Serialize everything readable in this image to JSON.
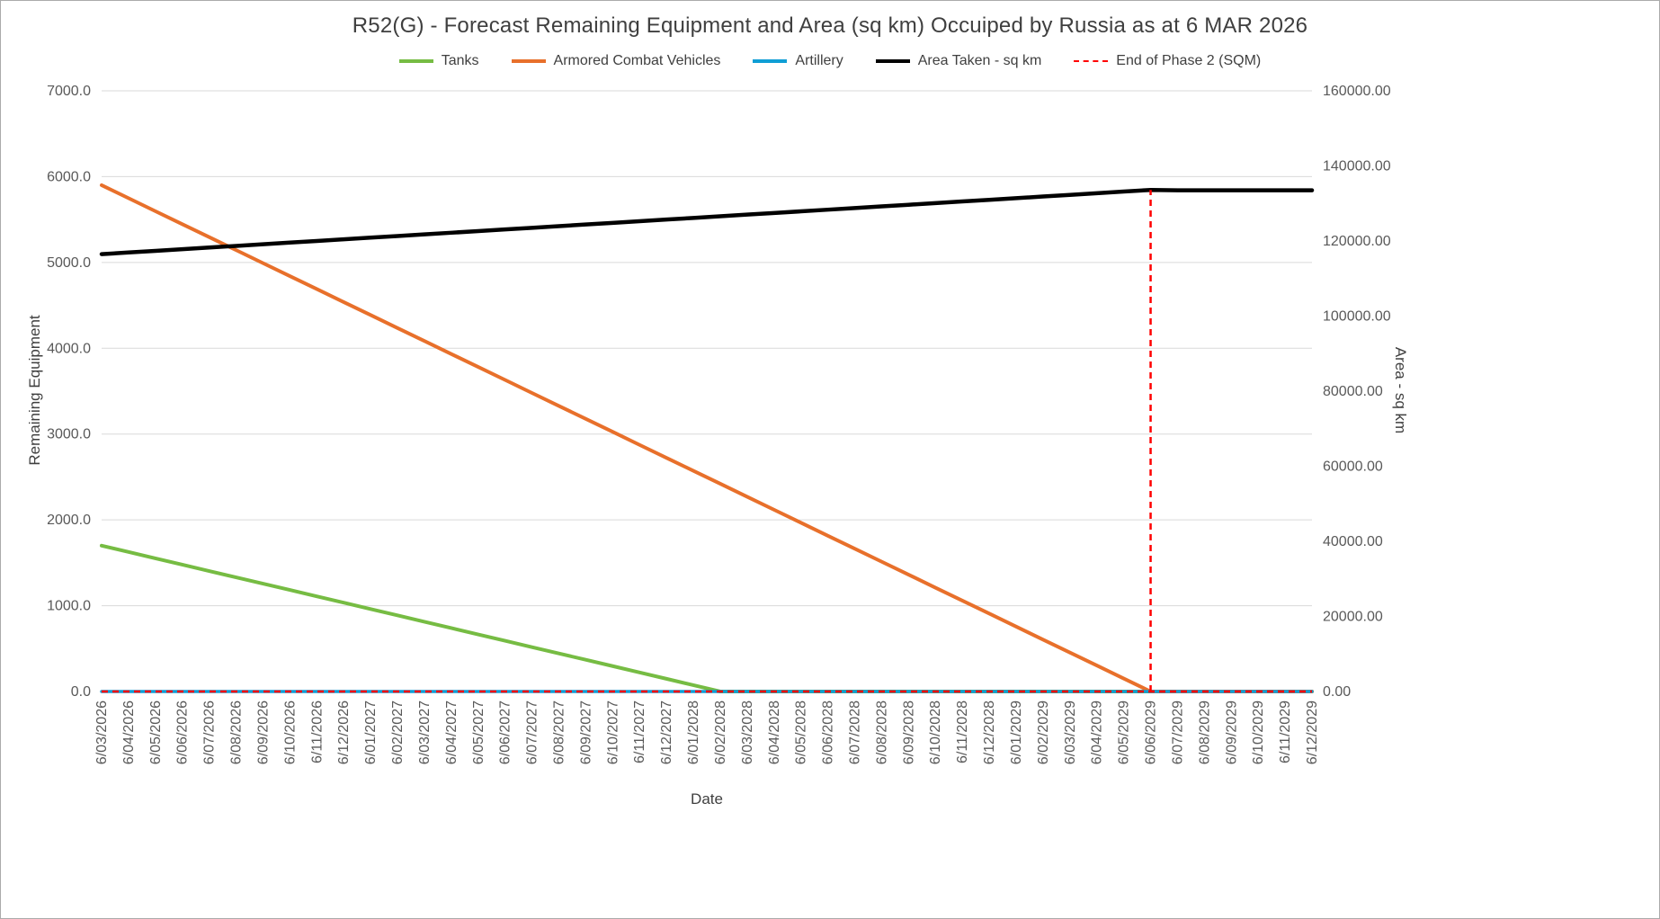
{
  "chart_data": {
    "type": "line",
    "title": "R52(G) - Forecast Remaining Equipment and Area (sq km) Occuiped by Russia as at 6 MAR 2026",
    "xlabel": "Date",
    "ylabel_left": "Remaining Equipment",
    "ylabel_right": "Area - sq km",
    "grid": "horizontal",
    "legend_position": "top",
    "colors": {
      "gridline": "#d9d9d9",
      "axis_line": "#bfbfbf",
      "tick_text": "#595959"
    },
    "left_axis": {
      "min": 0,
      "max": 7000,
      "step": 1000,
      "tick_format": "one_decimal"
    },
    "right_axis": {
      "min": 0,
      "max": 160000,
      "step": 20000,
      "tick_format": "two_decimal"
    },
    "x": [
      "6/03/2026",
      "6/04/2026",
      "6/05/2026",
      "6/06/2026",
      "6/07/2026",
      "6/08/2026",
      "6/09/2026",
      "6/10/2026",
      "6/11/2026",
      "6/12/2026",
      "6/01/2027",
      "6/02/2027",
      "6/03/2027",
      "6/04/2027",
      "6/05/2027",
      "6/06/2027",
      "6/07/2027",
      "6/08/2027",
      "6/09/2027",
      "6/10/2027",
      "6/11/2027",
      "6/12/2027",
      "6/01/2028",
      "6/02/2028",
      "6/03/2028",
      "6/04/2028",
      "6/05/2028",
      "6/06/2028",
      "6/07/2028",
      "6/08/2028",
      "6/09/2028",
      "6/10/2028",
      "6/11/2028",
      "6/12/2028",
      "6/01/2029",
      "6/02/2029",
      "6/03/2029",
      "6/04/2029",
      "6/05/2029",
      "6/06/2029",
      "6/07/2029",
      "6/08/2029",
      "6/09/2029",
      "6/10/2029",
      "6/11/2029",
      "6/12/2029"
    ],
    "series": [
      {
        "name": "Tanks",
        "axis": "left",
        "color": "#76bc43",
        "width": 4,
        "dash": null,
        "values": [
          1700,
          1626,
          1552,
          1478,
          1404,
          1330,
          1257,
          1183,
          1109,
          1035,
          961,
          887,
          813,
          739,
          665,
          591,
          517,
          443,
          370,
          296,
          222,
          148,
          74,
          0,
          0,
          0,
          0,
          0,
          0,
          0,
          0,
          0,
          0,
          0,
          0,
          0,
          0,
          0,
          0,
          0,
          0,
          0,
          0,
          0,
          0,
          0
        ]
      },
      {
        "name": "Armored Combat Vehicles",
        "axis": "left",
        "color": "#e8702b",
        "width": 4,
        "dash": null,
        "values": [
          5900,
          5749,
          5597,
          5446,
          5295,
          5144,
          4992,
          4841,
          4690,
          4538,
          4387,
          4236,
          4085,
          3933,
          3782,
          3631,
          3479,
          3328,
          3177,
          3026,
          2874,
          2723,
          2572,
          2421,
          2269,
          2118,
          1967,
          1815,
          1664,
          1513,
          1362,
          1210,
          1059,
          908,
          756,
          605,
          454,
          303,
          151,
          0,
          0,
          0,
          0,
          0,
          0,
          0
        ]
      },
      {
        "name": "Artillery",
        "axis": "left",
        "color": "#0f9ed5",
        "width": 3.5,
        "dash": null,
        "values": [
          0,
          0,
          0,
          0,
          0,
          0,
          0,
          0,
          0,
          0,
          0,
          0,
          0,
          0,
          0,
          0,
          0,
          0,
          0,
          0,
          0,
          0,
          0,
          0,
          0,
          0,
          0,
          0,
          0,
          0,
          0,
          0,
          0,
          0,
          0,
          0,
          0,
          0,
          0,
          0,
          0,
          0,
          0,
          0,
          0,
          0
        ]
      },
      {
        "name": "Area Taken - sq km",
        "axis": "right",
        "color": "#000000",
        "width": 4.5,
        "dash": null,
        "values": [
          116500,
          116938,
          117377,
          117815,
          118254,
          118692,
          119131,
          119569,
          120008,
          120446,
          120885,
          121323,
          121762,
          122200,
          122638,
          123077,
          123515,
          123954,
          124392,
          124831,
          125269,
          125708,
          126146,
          126585,
          127023,
          127462,
          127900,
          128338,
          128777,
          129215,
          129654,
          130092,
          130531,
          130969,
          131408,
          131846,
          132285,
          132723,
          133162,
          133600,
          133500,
          133500,
          133500,
          133500,
          133500,
          133500
        ]
      },
      {
        "name": "End of Phase 2 (SQM)",
        "axis": "right",
        "color": "#ff0000",
        "width": 2.5,
        "dash": "7 5",
        "baseline": 0,
        "vline_x": "6/06/2029",
        "vline_top": 133600
      }
    ]
  }
}
